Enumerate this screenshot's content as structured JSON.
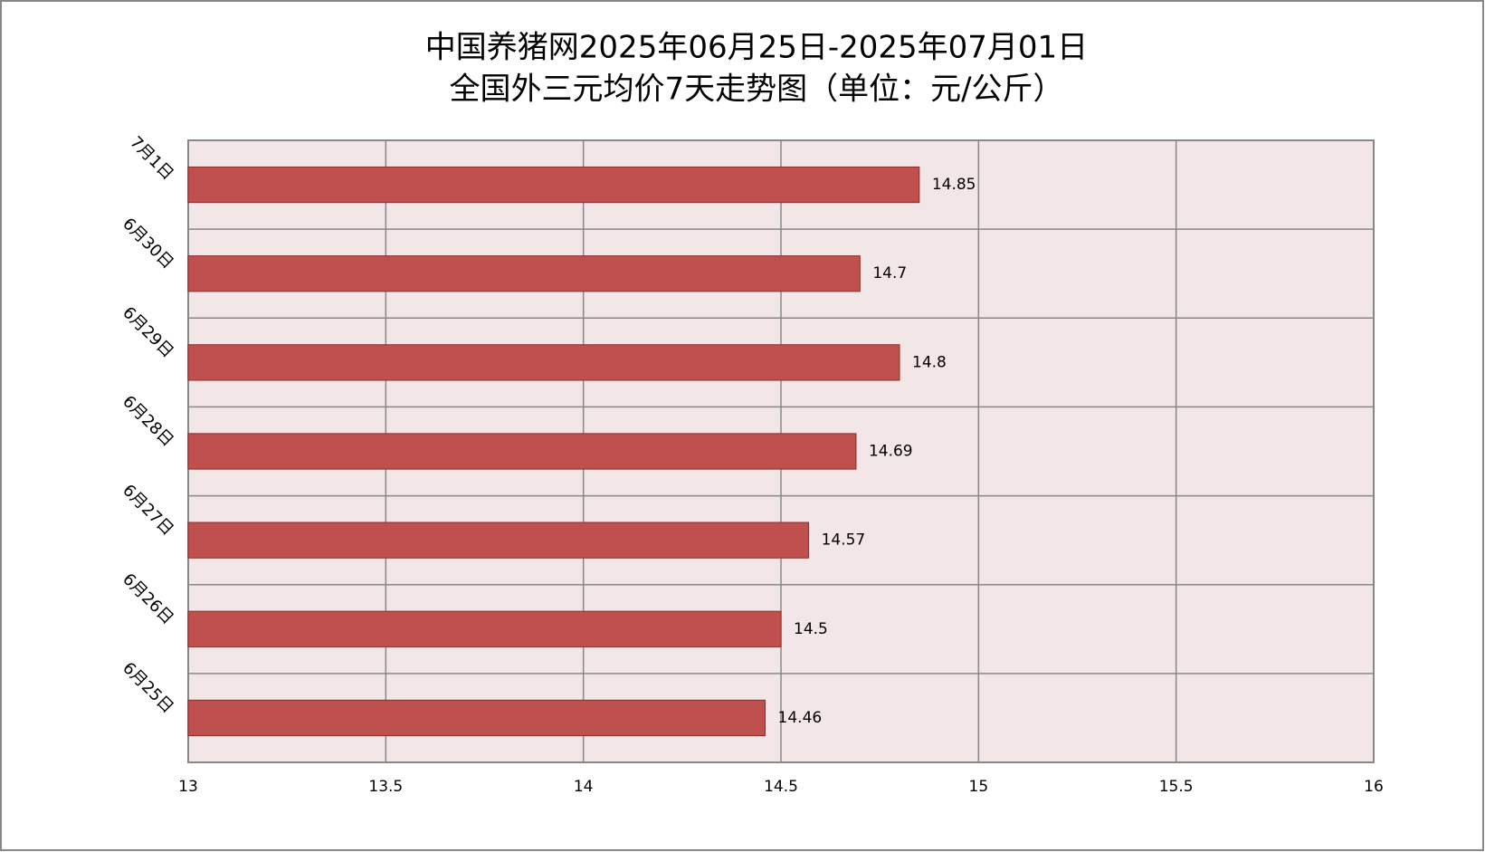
{
  "chart_data": {
    "type": "bar",
    "orientation": "horizontal",
    "title": [
      "中国养猪网2025年06月25日-2025年07月01日",
      "全国外三元均价7天走势图（单位：元/公斤）"
    ],
    "categories": [
      "7月1日",
      "6月30日",
      "6月29日",
      "6月28日",
      "6月27日",
      "6月26日",
      "6月25日"
    ],
    "values": [
      14.85,
      14.7,
      14.8,
      14.69,
      14.57,
      14.5,
      14.46
    ],
    "color": "#c0504d",
    "xlim": [
      13,
      16
    ],
    "xticks": [
      13,
      13.5,
      14,
      14.5,
      15,
      15.5,
      16
    ],
    "grid": true
  }
}
